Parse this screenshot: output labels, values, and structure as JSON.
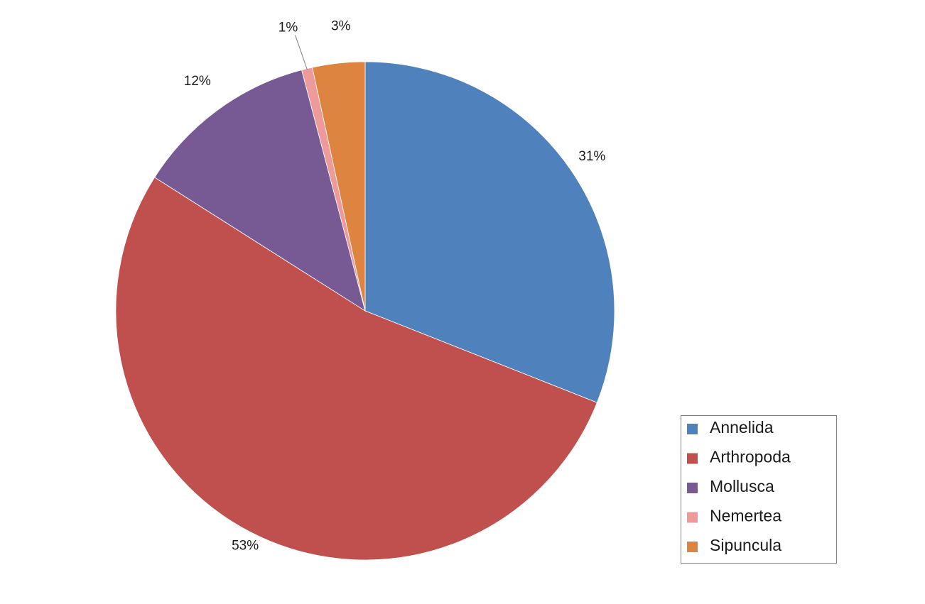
{
  "chart_data": {
    "type": "pie",
    "title": "",
    "legend_position": "bottom-right",
    "start_angle_deg": 0,
    "direction": "clockwise",
    "slices": [
      {
        "label": "Annelida",
        "value": 31.0,
        "display": "31%",
        "color": "#4F81BD"
      },
      {
        "label": "Arthropoda",
        "value": 53.0,
        "display": "53%",
        "color": "#C0504D"
      },
      {
        "label": "Mollusca",
        "value": 11.9,
        "display": "12%",
        "color": "#775A93"
      },
      {
        "label": "Nemertea",
        "value": 0.7,
        "display": "1%",
        "color": "#EE9A9A"
      },
      {
        "label": "Sipuncula",
        "value": 3.4,
        "display": "3%",
        "color": "#DD8440"
      }
    ]
  }
}
